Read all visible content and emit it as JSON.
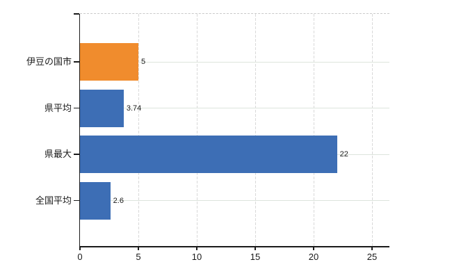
{
  "chart_data": {
    "type": "bar",
    "orientation": "horizontal",
    "title": "",
    "categories": [
      "伊豆の国市",
      "県平均",
      "県最大",
      "全国平均"
    ],
    "values": [
      5,
      3.74,
      22,
      2.6
    ],
    "value_labels": [
      "5",
      "3.74",
      "22",
      "2.6"
    ],
    "bar_colors": [
      "#F08C2D",
      "#3D6EB5",
      "#3D6EB5",
      "#3D6EB5"
    ],
    "x_ticks": [
      0,
      5,
      10,
      15,
      20,
      25
    ],
    "x_tick_labels": [
      "0",
      "5",
      "10",
      "15",
      "20",
      "25"
    ],
    "xlim": [
      0,
      26.5
    ],
    "grid": true,
    "legend": null,
    "colors": {
      "orange": "#F08C2D",
      "blue": "#3D6EB5",
      "axis": "#1a1a1a",
      "text": "#1a1a1a",
      "grid_vertical": "#d9d9d9",
      "grid_horizontal": "#dde4dc",
      "plot_top_border": "#c9c9c9",
      "background": "#ffffff"
    }
  }
}
